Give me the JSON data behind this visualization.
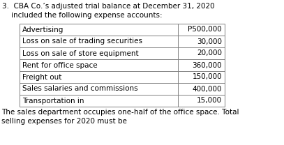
{
  "header_line1": "3.  CBA Co.’s adjusted trial balance at December 31, 2020",
  "header_line2": "    included the following expense accounts:",
  "rows": [
    [
      "Advertising",
      "P500,000"
    ],
    [
      "Loss on sale of trading securities",
      "30,000"
    ],
    [
      "Loss on sale of store equipment",
      "20,000"
    ],
    [
      "Rent for office space",
      "360,000"
    ],
    [
      "Freight out",
      "150,000"
    ],
    [
      "Sales salaries and commissions",
      "400,000"
    ],
    [
      "Transportation in",
      "15,000"
    ]
  ],
  "footer_line1": "The sales department occupies one-half of the office space. Total",
  "footer_line2": "selling expenses for 2020 must be",
  "bg_color": "#ffffff",
  "text_color": "#000000",
  "table_border_color": "#808080",
  "font_size": 7.5
}
